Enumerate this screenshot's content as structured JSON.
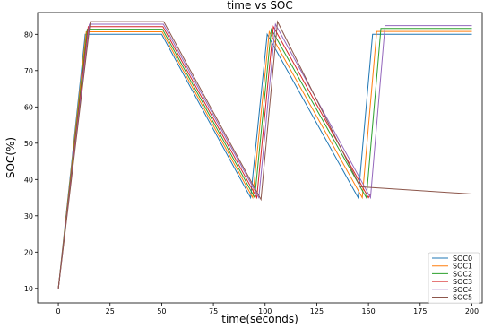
{
  "chart_data": {
    "type": "line",
    "title": "time vs SOC",
    "xlabel": "time(seconds)",
    "ylabel": "SOC(%)",
    "xlim": [
      -10,
      205
    ],
    "ylim": [
      6,
      86
    ],
    "xticks": [
      0,
      25,
      50,
      75,
      100,
      125,
      150,
      175,
      200
    ],
    "yticks": [
      10,
      20,
      30,
      40,
      50,
      60,
      70,
      80
    ],
    "legend_position": "lower-right",
    "grid": false,
    "series": [
      {
        "name": "SOC0",
        "color": "#1f77b4",
        "points": [
          [
            0,
            10
          ],
          [
            13,
            80
          ],
          [
            50,
            80
          ],
          [
            93,
            35
          ],
          [
            101,
            80
          ],
          [
            145,
            35
          ],
          [
            152,
            80
          ],
          [
            200,
            80
          ]
        ]
      },
      {
        "name": "SOC1",
        "color": "#ff7f0e",
        "points": [
          [
            0,
            10
          ],
          [
            13.5,
            80.7
          ],
          [
            50.2,
            80.7
          ],
          [
            94,
            35
          ],
          [
            102,
            80.7
          ],
          [
            147,
            35
          ],
          [
            154,
            80.8
          ],
          [
            200,
            80.8
          ]
        ]
      },
      {
        "name": "SOC2",
        "color": "#2ca02c",
        "points": [
          [
            0,
            10
          ],
          [
            14,
            81.4
          ],
          [
            50.4,
            81.4
          ],
          [
            95,
            35
          ],
          [
            103,
            81.4
          ],
          [
            149,
            35
          ],
          [
            156,
            81.6
          ],
          [
            200,
            81.6
          ]
        ]
      },
      {
        "name": "SOC3",
        "color": "#d62728",
        "points": [
          [
            0,
            10
          ],
          [
            14.5,
            82.1
          ],
          [
            50.6,
            82.1
          ],
          [
            96,
            35
          ],
          [
            104,
            82.1
          ],
          [
            150,
            35
          ],
          [
            151,
            36
          ],
          [
            200,
            36
          ]
        ]
      },
      {
        "name": "SOC4",
        "color": "#9467bd",
        "points": [
          [
            0,
            10
          ],
          [
            15,
            82.8
          ],
          [
            50.8,
            82.8
          ],
          [
            97,
            35
          ],
          [
            105,
            82.8
          ],
          [
            151,
            35
          ],
          [
            158,
            82.4
          ],
          [
            200,
            82.4
          ]
        ]
      },
      {
        "name": "SOC5",
        "color": "#8c564b",
        "points": [
          [
            0,
            10
          ],
          [
            15.5,
            83.5
          ],
          [
            51,
            83.5
          ],
          [
            98,
            34.5
          ],
          [
            106,
            83.5
          ],
          [
            146,
            38
          ],
          [
            200,
            36
          ]
        ]
      }
    ]
  }
}
